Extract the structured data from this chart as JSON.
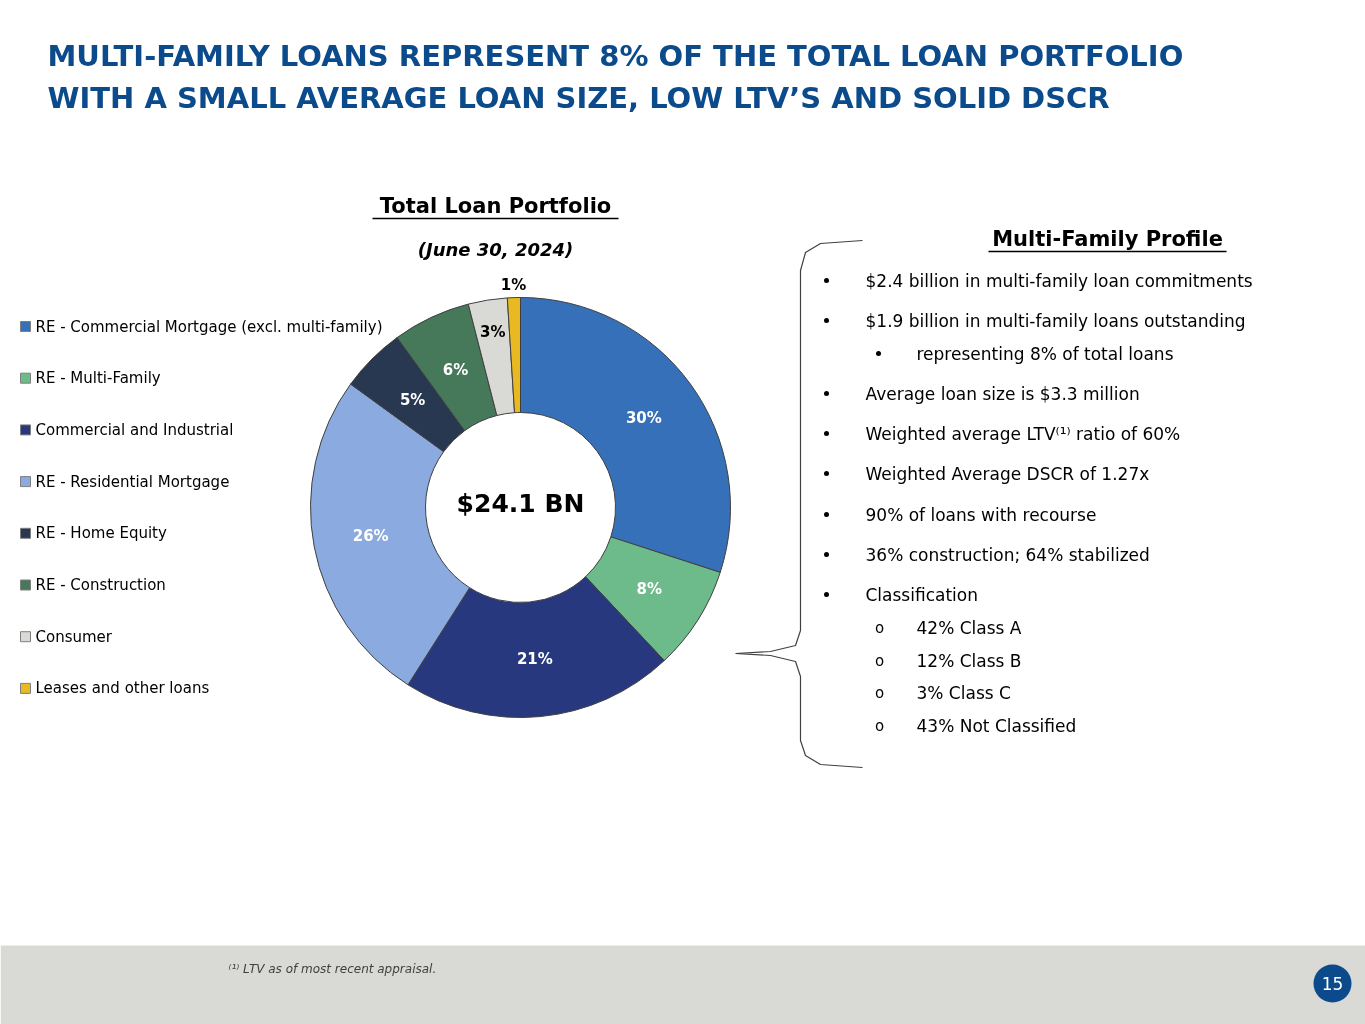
{
  "chart_data": {
    "type": "donut",
    "title": "MULTI-FAMILY LOANS REPRESENT 8% OF THE TOTAL LOAN PORTFOLIO\nWITH A SMALL AVERAGE LOAN SIZE, LOW LTV’S AND SOLID DSCR",
    "subtitle": "Total Loan Portfolio",
    "categories": [
      "RE - Commercial Mortgage (excl. multi-family)",
      "RE - Multi-Family",
      "Commercial and Industrial",
      "RE - Residential Mortgage",
      "RE - Home Equity",
      "RE - Construction",
      "Consumer",
      "Leases and other loans"
    ],
    "values": [
      30,
      8,
      21,
      26,
      5,
      6,
      3,
      1
    ],
    "colors": [
      "#3570b8",
      "#6dbb8a",
      "#27387e",
      "#8aaae0",
      "#283850",
      "#46785a",
      "#d9d9d6",
      "#e8b920"
    ],
    "value_labels": [
      "30%",
      "8%",
      "21%",
      "26%",
      "5%",
      "6%",
      "3%",
      "1%"
    ],
    "legend": "left",
    "annotations": [
      "(June 30, 2024)",
      "$24.1 BN",
      "Multi-Family Profile",
      "$2.4 billion in multi-family loan commitments",
      "$1.9 billion in multi-family loans outstanding",
      "representing 8% of total loans",
      "Average loan size is $3.3 million",
      "Weighted average LTV⁽¹⁾ ratio of 60%",
      "Weighted Average DSCR of 1.27x",
      "90% of loans with recourse",
      "36% construction; 64% stabilized",
      "Classification",
      "42% Class A",
      "12% Class B",
      "3% Class C",
      "43% Not Classified",
      "⁽¹⁾ LTV as of most recent appraisal.",
      "15",
      "o",
      "o",
      "o",
      "o"
    ]
  }
}
